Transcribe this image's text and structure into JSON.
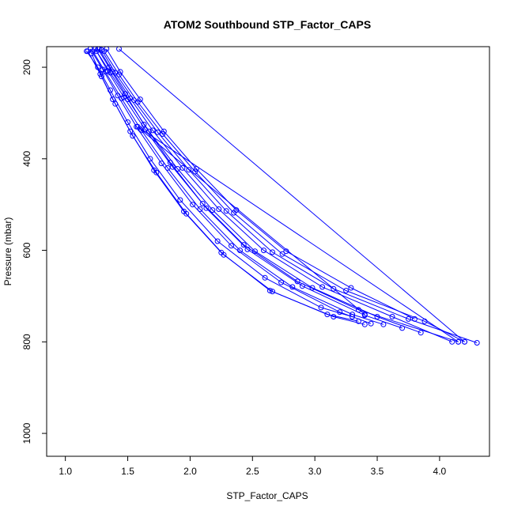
{
  "chart_data": {
    "type": "line",
    "title": "ATOM2 Southbound STP_Factor_CAPS",
    "xlabel": "STP_Factor_CAPS",
    "ylabel": "Pressure (mbar)",
    "xlim": [
      0.85,
      4.4
    ],
    "ylim": [
      1050,
      155
    ],
    "y_inverted": true,
    "x_ticks": [
      1.0,
      1.5,
      2.0,
      2.5,
      3.0,
      3.5,
      4.0
    ],
    "x_tick_labels": [
      "1.0",
      "1.5",
      "2.0",
      "2.5",
      "3.0",
      "3.5",
      "4.0"
    ],
    "y_ticks": [
      200,
      400,
      600,
      800,
      1000
    ],
    "y_tick_labels": [
      "200",
      "400",
      "600",
      "800",
      "1000"
    ],
    "grid": false,
    "marker": "open-circle",
    "series_color": "#0000ff",
    "series": [
      {
        "x": [
          1.17,
          1.26,
          1.36,
          1.5,
          1.68,
          1.92,
          2.22,
          2.6,
          3.05,
          3.3
        ],
        "y": [
          165,
          200,
          250,
          320,
          400,
          490,
          580,
          660,
          725,
          745
        ]
      },
      {
        "x": [
          1.2,
          1.3,
          1.42,
          1.57,
          1.77,
          2.02,
          2.33,
          2.73,
          3.2,
          3.45
        ],
        "y": [
          160,
          205,
          262,
          330,
          410,
          500,
          590,
          670,
          735,
          760
        ]
      },
      {
        "x": [
          1.22,
          1.32,
          1.45,
          1.61,
          1.82,
          2.08,
          2.4,
          2.82,
          3.3,
          3.55
        ],
        "y": [
          165,
          210,
          268,
          338,
          420,
          510,
          600,
          680,
          740,
          762
        ]
      },
      {
        "x": [
          1.24,
          1.34,
          1.47,
          1.64,
          1.86,
          2.13,
          2.46,
          2.9,
          3.4,
          3.7
        ],
        "y": [
          160,
          208,
          266,
          336,
          418,
          508,
          598,
          678,
          742,
          770
        ]
      },
      {
        "x": [
          1.25,
          1.36,
          1.5,
          1.67,
          1.9,
          2.18,
          2.52,
          2.98,
          3.5,
          3.85
        ],
        "y": [
          165,
          212,
          270,
          340,
          422,
          512,
          602,
          682,
          745,
          780
        ]
      },
      {
        "x": [
          1.27,
          1.38,
          1.52,
          1.7,
          1.94,
          2.23,
          2.59,
          3.06,
          3.62,
          4.1
        ],
        "y": [
          160,
          210,
          268,
          338,
          420,
          510,
          600,
          680,
          745,
          800
        ]
      },
      {
        "x": [
          1.29,
          1.4,
          1.55,
          1.74,
          1.99,
          2.29,
          2.66,
          3.15,
          3.75,
          4.3
        ],
        "y": [
          162,
          212,
          272,
          342,
          424,
          514,
          604,
          684,
          750,
          802
        ]
      },
      {
        "x": [
          1.31,
          1.43,
          1.58,
          1.78,
          2.04,
          2.35,
          2.74,
          3.25,
          3.88,
          4.2
        ],
        "y": [
          165,
          216,
          276,
          346,
          428,
          518,
          608,
          688,
          755,
          800
        ]
      },
      {
        "x": [
          1.21,
          1.29,
          1.4,
          1.54,
          1.73,
          1.97,
          2.27,
          2.66,
          3.1,
          3.35
        ],
        "y": [
          170,
          220,
          280,
          350,
          430,
          520,
          610,
          690,
          740,
          755
        ]
      },
      {
        "x": [
          1.18,
          1.28,
          1.38,
          1.52,
          1.71,
          1.95,
          2.25,
          2.64,
          3.15,
          3.4
        ],
        "y": [
          165,
          215,
          270,
          340,
          425,
          515,
          605,
          688,
          745,
          762
        ]
      },
      {
        "x": [
          1.26,
          1.35,
          1.48,
          1.63,
          1.84,
          2.1,
          2.43,
          2.86,
          3.35,
          4.15
        ],
        "y": [
          160,
          200,
          258,
          325,
          408,
          498,
          588,
          668,
          730,
          800
        ]
      },
      {
        "x": [
          1.33,
          1.44,
          1.6,
          1.79,
          2.05,
          2.37,
          2.77,
          3.29,
          3.8
        ],
        "y": [
          160,
          210,
          270,
          340,
          422,
          512,
          602,
          682,
          750
        ]
      },
      {
        "x": [
          1.43,
          4.2
        ],
        "y": [
          160,
          800
        ]
      },
      {
        "x": [
          1.6,
          3.4
        ],
        "y": [
          335,
          740
        ]
      },
      {
        "x": [
          1.58,
          4.15
        ],
        "y": [
          330,
          800
        ]
      }
    ]
  }
}
